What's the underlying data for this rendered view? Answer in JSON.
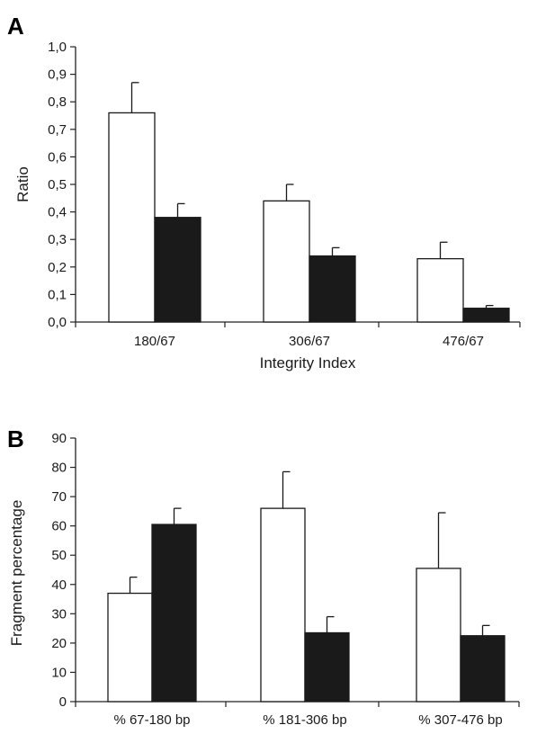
{
  "chart_data": [
    {
      "panel": "A",
      "type": "bar",
      "xlabel": "Integrity Index",
      "ylabel": "Ratio",
      "ylim": [
        0,
        1.0
      ],
      "yticks": [
        "0,0",
        "0,1",
        "0,2",
        "0,3",
        "0,4",
        "0,5",
        "0,6",
        "0,7",
        "0,8",
        "0,9",
        "1,0"
      ],
      "categories": [
        "180/67",
        "306/67",
        "476/67"
      ],
      "series": [
        {
          "fill": "#ffffff",
          "values": [
            0.76,
            0.44,
            0.23
          ],
          "errors": [
            0.11,
            0.06,
            0.06
          ]
        },
        {
          "fill": "#1a1a1a",
          "values": [
            0.38,
            0.24,
            0.05
          ],
          "errors": [
            0.05,
            0.03,
            0.01
          ]
        }
      ]
    },
    {
      "panel": "B",
      "type": "bar",
      "xlabel": "",
      "ylabel": "Fragment percentage",
      "ylim": [
        0,
        90
      ],
      "yticks": [
        "0",
        "10",
        "20",
        "30",
        "40",
        "50",
        "60",
        "70",
        "80",
        "90"
      ],
      "categories": [
        "% 67-180 bp",
        "% 181-306 bp",
        "% 307-476 bp"
      ],
      "series": [
        {
          "fill": "#ffffff",
          "values": [
            37,
            66,
            45.5
          ],
          "errors": [
            5.5,
            12.5,
            19
          ]
        },
        {
          "fill": "#1a1a1a",
          "values": [
            60.5,
            23.5,
            22.5
          ],
          "errors": [
            5.5,
            5.5,
            3.5
          ]
        }
      ]
    }
  ]
}
